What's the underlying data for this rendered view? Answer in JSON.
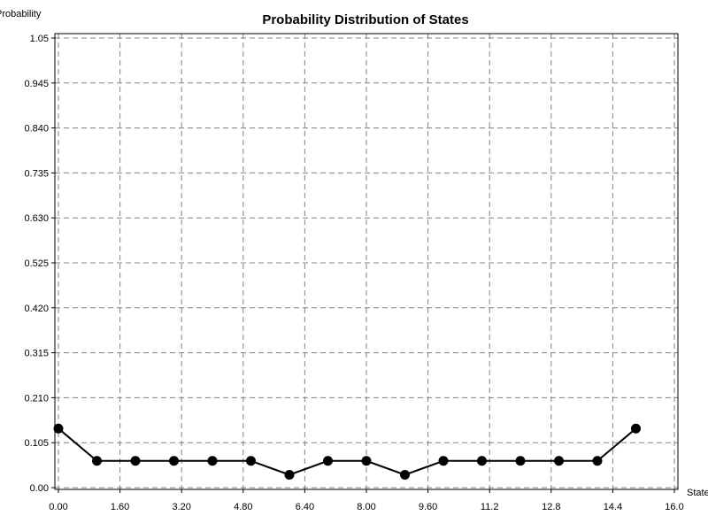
{
  "chart_data": {
    "type": "line",
    "title": "Probability Distribution of States",
    "xlabel": "State",
    "ylabel": "Probability",
    "xlim": [
      0,
      16
    ],
    "ylim": [
      0,
      1.05
    ],
    "x_ticks": [
      "0.00",
      "1.60",
      "3.20",
      "4.80",
      "6.40",
      "8.00",
      "9.60",
      "11.2",
      "12.8",
      "14.4",
      "16.0"
    ],
    "y_ticks": [
      "0.00",
      "0.105",
      "0.210",
      "0.315",
      "0.420",
      "0.525",
      "0.630",
      "0.735",
      "0.840",
      "0.945",
      "1.05"
    ],
    "grid": true,
    "series": [
      {
        "x": [
          0,
          1,
          2,
          3,
          4,
          5,
          6,
          7,
          8,
          9,
          10,
          11,
          12,
          13,
          14,
          15
        ],
        "y": [
          0.138,
          0.0625,
          0.0625,
          0.0625,
          0.0625,
          0.0625,
          0.03,
          0.0625,
          0.0625,
          0.03,
          0.0625,
          0.0625,
          0.0625,
          0.0625,
          0.0625,
          0.138
        ]
      }
    ],
    "colors": {
      "line": "#000000",
      "grid": "#808080",
      "axis": "#000000"
    }
  }
}
